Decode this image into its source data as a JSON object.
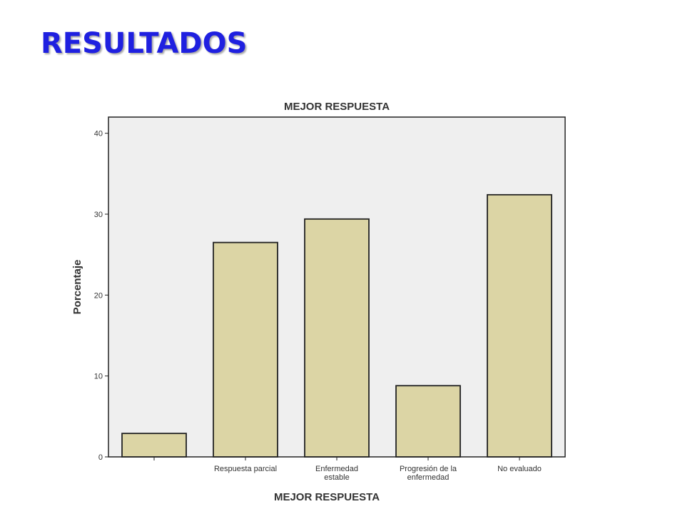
{
  "slide": {
    "title": "RESULTADOS"
  },
  "chart_data": {
    "type": "bar",
    "title": "MEJOR RESPUESTA",
    "xlabel": "MEJOR RESPUESTA",
    "ylabel": "Porcentaje",
    "categories": [
      [
        ""
      ],
      [
        "Respuesta parcial"
      ],
      [
        "Enfermedad",
        "estable"
      ],
      [
        "Progresión de la",
        "enfermedad"
      ],
      [
        "No evaluado"
      ]
    ],
    "values": [
      2.9,
      26.5,
      29.4,
      8.8,
      32.4
    ],
    "yticks": [
      "0",
      "10",
      "20",
      "30",
      "40"
    ],
    "ylim": [
      0,
      42
    ],
    "grid": false,
    "colors": {
      "bar_fill": "#dcd5a5",
      "bar_stroke": "#222222",
      "plot_bg": "#efefef",
      "title_color": "#1f20e0"
    }
  }
}
